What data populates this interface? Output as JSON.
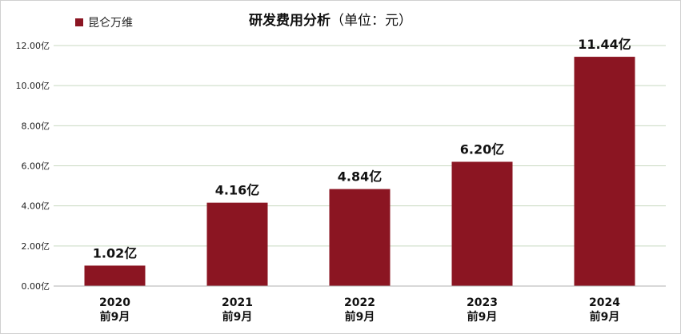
{
  "chart_data": {
    "type": "bar",
    "title": "研发费用分析",
    "subtitle": "（单位：元）",
    "xlabel": "",
    "ylabel": "",
    "categories": [
      {
        "year": "2020",
        "period": "前9月"
      },
      {
        "year": "2021",
        "period": "前9月"
      },
      {
        "year": "2022",
        "period": "前9月"
      },
      {
        "year": "2023",
        "period": "前9月"
      },
      {
        "year": "2024",
        "period": "前9月"
      }
    ],
    "series": [
      {
        "name": "昆仑万维",
        "color": "#8B1522",
        "values": [
          1.02,
          4.16,
          4.84,
          6.2,
          11.44
        ],
        "data_labels": [
          "1.02亿",
          "4.16亿",
          "4.84亿",
          "6.20亿",
          "11.44亿"
        ]
      }
    ],
    "ylim": [
      0,
      12
    ],
    "yticks": [
      0,
      2,
      4,
      6,
      8,
      10,
      12
    ],
    "ytick_labels": [
      "0.00亿",
      "2.00亿",
      "4.00亿",
      "6.00亿",
      "8.00亿",
      "10.00亿",
      "12.00亿"
    ],
    "grid": true,
    "legend_position": "top-left"
  }
}
